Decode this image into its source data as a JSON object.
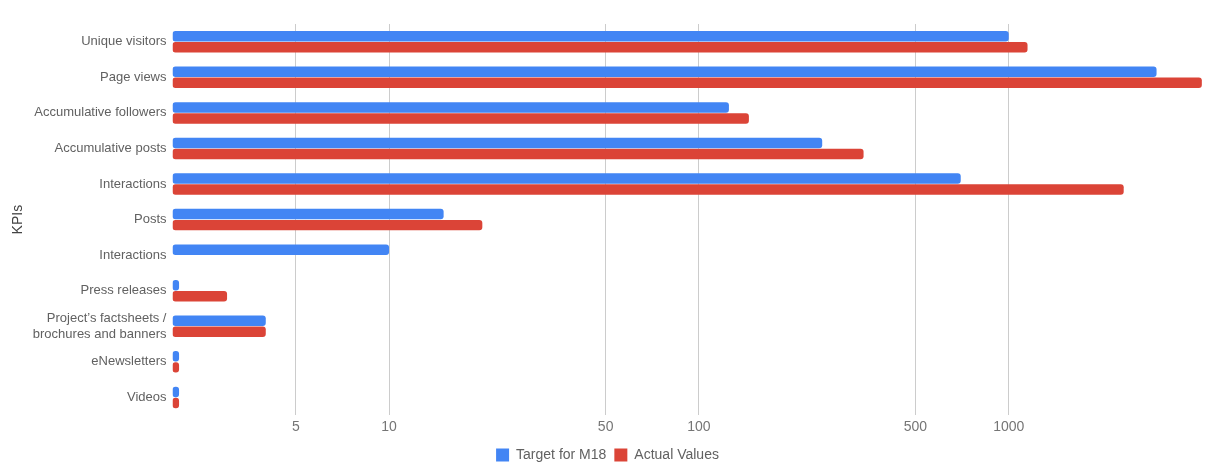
{
  "chart_data": {
    "type": "bar",
    "orientation": "horizontal",
    "ylabel": "KPIs",
    "categories": [
      "Unique visitors",
      "Page views",
      "Accumulative followers",
      "Accumulative posts",
      "Interactions",
      "Posts",
      "Interactions",
      "Press releases",
      "Project’s factsheets / brochures and banners",
      "eNewsletters",
      "Videos"
    ],
    "series": [
      {
        "name": "Target for M18",
        "color": "#4285f4",
        "values": [
          1000,
          3000,
          125,
          250,
          700,
          15,
          10,
          2.1,
          4,
          2.1,
          2.1
        ]
      },
      {
        "name": "Actual Values",
        "color": "#db4437",
        "values": [
          1150,
          4200,
          145,
          340,
          2350,
          20,
          null,
          3,
          4,
          2.1,
          2.1
        ]
      }
    ],
    "log": "x",
    "xlim": [
      2,
      4300
    ],
    "xticks": [
      5,
      10,
      50,
      100,
      500,
      1000
    ],
    "grid": "x",
    "legend": "bottom"
  }
}
